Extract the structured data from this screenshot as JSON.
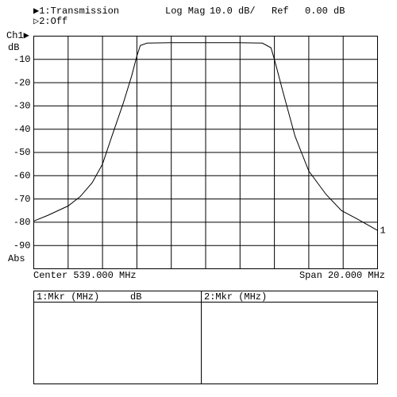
{
  "chart_data": {
    "type": "line",
    "header": {
      "trace1": "▶1:Transmission",
      "format": "Log Mag",
      "scale": "10.0 dB/",
      "ref_label": "Ref",
      "ref_value": "0.00 dB",
      "trace2": "▷2:Off"
    },
    "channel": "Ch1▶",
    "y_unit": "dB",
    "bottom_left": "Abs",
    "x_left_label": "Center 539.000 MHz",
    "x_right_label": "Span 20.000 MHz",
    "xlim": [
      529,
      549
    ],
    "ylim": [
      -100,
      0
    ],
    "yticks": [
      -10,
      -20,
      -30,
      -40,
      -50,
      -60,
      -70,
      -80,
      -90
    ],
    "grid": true,
    "series": [
      {
        "name": "1",
        "color": "#000000",
        "x": [
          529,
          529.83,
          531,
          531.7,
          532.4,
          533,
          533.5,
          534.2,
          534.7,
          535,
          535.2,
          535.6,
          537,
          540.9,
          542.3,
          542.8,
          543,
          543.5,
          544.2,
          545,
          546,
          546.9,
          547.8,
          549
        ],
        "values": [
          -79.5,
          -77,
          -73,
          -69,
          -63,
          -55,
          -44,
          -29,
          -17,
          -8.5,
          -4,
          -3,
          -2.8,
          -2.8,
          -3,
          -5,
          -10,
          -24,
          -43,
          -58,
          -68,
          -75,
          -78.5,
          -83.5
        ]
      }
    ],
    "marker_table": {
      "col1": "1:Mkr (MHz)",
      "col1_unit": "dB",
      "col2": "2:Mkr (MHz)"
    }
  }
}
